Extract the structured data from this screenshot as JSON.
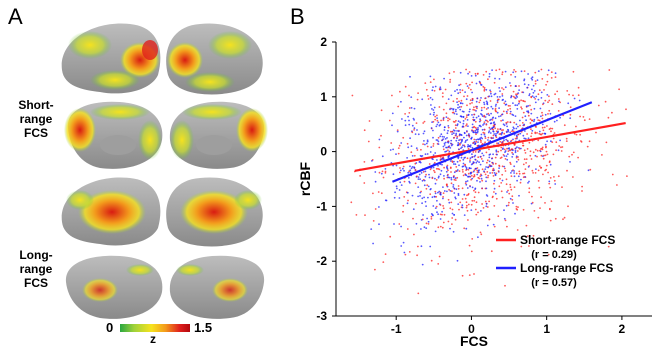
{
  "panel_a": {
    "letter": "A",
    "row1_label": [
      "Short-range",
      "FCS"
    ],
    "row2_label": [
      "Long-range",
      "FCS"
    ],
    "colorbar": {
      "min_label": "0",
      "max_label": "1.5",
      "axis_label": "z",
      "colors": [
        "#2aa640",
        "#9fd23a",
        "#f7e31e",
        "#f39a1c",
        "#e0201d",
        "#b3090d"
      ]
    }
  },
  "panel_b": {
    "letter": "B",
    "chart_data": {
      "type": "scatter",
      "xlabel": "FCS",
      "ylabel": "rCBF",
      "xlim": [
        -1.8,
        2.4
      ],
      "ylim": [
        -3,
        2
      ],
      "xticks": [
        -1,
        0,
        1,
        2
      ],
      "yticks": [
        -3,
        -2,
        -1,
        0,
        1,
        2
      ],
      "series": [
        {
          "name": "Short-range FCS",
          "r_label": "(r = 0.29)",
          "color": "#ff2020",
          "fit_line": [
            [
              -1.55,
              -0.35
            ],
            [
              2.05,
              0.52
            ]
          ],
          "cloud": {
            "center": [
              0.25,
              0.05
            ],
            "sx": 0.7,
            "sy": 0.85,
            "slope": 0.25,
            "x_range": [
              -1.6,
              2.1
            ]
          }
        },
        {
          "name": "Long-range FCS",
          "r_label": "(r = 0.57)",
          "color": "#2020ff",
          "fit_line": [
            [
              -1.05,
              -0.55
            ],
            [
              1.6,
              0.9
            ]
          ],
          "cloud": {
            "center": [
              0.0,
              0.1
            ],
            "sx": 0.55,
            "sy": 0.6,
            "slope": 0.55,
            "x_range": [
              -1.4,
              1.7
            ]
          }
        }
      ]
    }
  }
}
